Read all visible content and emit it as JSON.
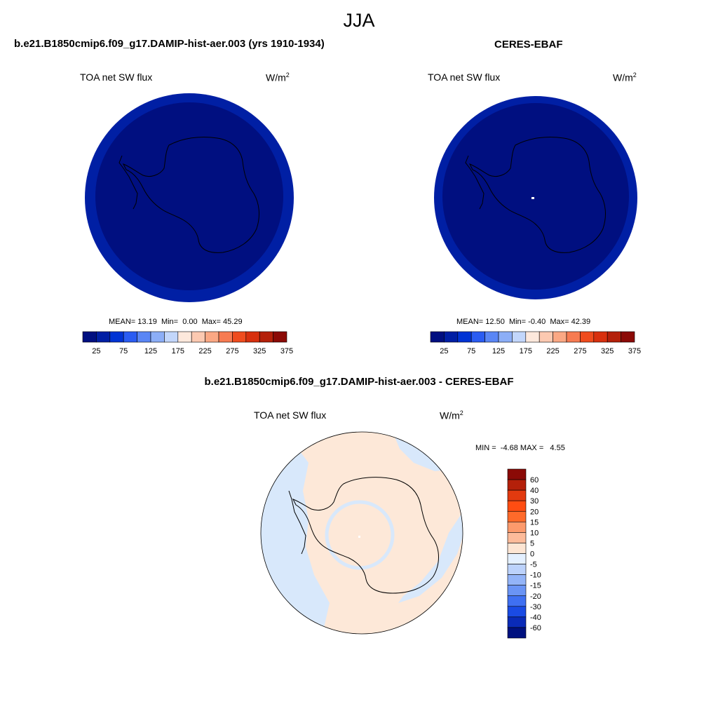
{
  "figure": {
    "title": "JJA"
  },
  "panels": [
    {
      "title": "b.e21.B1850cmip6.f09_g17.DAMIP-hist-aer.003 (yrs 1910-1934)",
      "left_label": "TOA net SW flux",
      "units": "W/m",
      "units_exp": "2",
      "stats": {
        "mean_label": "MEAN=",
        "mean": "13.19",
        "min_label": "Min=",
        "min": "0.00",
        "max_label": "Max=",
        "max": "45.29"
      }
    },
    {
      "title": "CERES-EBAF",
      "left_label": "TOA net SW flux",
      "units": "W/m",
      "units_exp": "2",
      "stats": {
        "mean_label": "MEAN=",
        "mean": "12.50",
        "min_label": "Min=",
        "min": "-0.40",
        "max_label": "Max=",
        "max": "42.39"
      }
    },
    {
      "title": "b.e21.B1850cmip6.f09_g17.DAMIP-hist-aer.003 - CERES-EBAF",
      "left_label": "TOA net SW flux",
      "units": "W/m",
      "units_exp": "2",
      "stats": {
        "min_label": "MIN =",
        "min": "-4.68",
        "max_label": "MAX =",
        "max": "4.55"
      }
    }
  ],
  "colorbars": {
    "abs": {
      "ticks": [
        "25",
        "75",
        "125",
        "175",
        "225",
        "275",
        "325",
        "375"
      ],
      "colors": [
        "#000f80",
        "#001fa4",
        "#0033d4",
        "#2a5cf2",
        "#5a86f5",
        "#8caef7",
        "#c2d6fb",
        "#fde8dc",
        "#fcc9b1",
        "#fba884",
        "#f77b52",
        "#ef4c1e",
        "#d8300e",
        "#b4200a",
        "#8b0a06"
      ]
    },
    "diff": {
      "ticks": [
        "60",
        "40",
        "30",
        "20",
        "15",
        "10",
        "5",
        "0",
        "-5",
        "-10",
        "-15",
        "-20",
        "-30",
        "-40",
        "-60"
      ],
      "colors": [
        "#8b0a06",
        "#b4200a",
        "#e23a0f",
        "#ff4d12",
        "#ff6a2a",
        "#fc9a6c",
        "#fdbb9a",
        "#fde5d3",
        "#e4f0ff",
        "#bcd2fb",
        "#93b4f8",
        "#6a94f5",
        "#3f70f2",
        "#1a4be4",
        "#0a2bb8",
        "#00117f"
      ]
    }
  },
  "map_colors": {
    "panel_inner": "#000f80",
    "panel_ring": "#001fa4",
    "diff_positive": "#fde8d8",
    "diff_negative": "#d8e8fb",
    "coastline": "#000000"
  }
}
